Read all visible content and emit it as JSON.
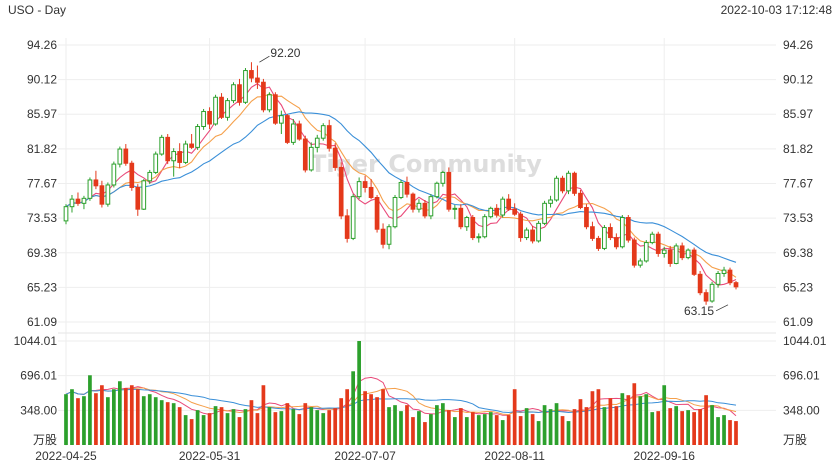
{
  "header": {
    "title": "USO - Day",
    "timestamp": "2022-10-03 17:12:48"
  },
  "watermark": "Tiger Community",
  "colors": {
    "up": "#2ca02c",
    "down": "#e4391b",
    "ma5": "#e94a7a",
    "ma10": "#f5a04b",
    "ma20": "#3a8fd8",
    "grid": "#eeeeee",
    "text": "#333333"
  },
  "chart_data": {
    "type": "candlestick",
    "price_ticks": [
      "94.26",
      "90.12",
      "85.97",
      "81.82",
      "77.67",
      "73.53",
      "69.38",
      "65.23",
      "61.09"
    ],
    "price_tick_values": [
      94.26,
      90.12,
      85.97,
      81.82,
      77.67,
      73.53,
      69.38,
      65.23,
      61.09
    ],
    "volume_ticks": [
      "1044.01",
      "696.01",
      "348.00"
    ],
    "volume_tick_values": [
      1044.01,
      696.01,
      348.0
    ],
    "volume_unit": "万股",
    "date_labels": [
      {
        "label": "2022-04-25",
        "index": 0
      },
      {
        "label": "2022-05-31",
        "index": 24
      },
      {
        "label": "2022-07-07",
        "index": 50
      },
      {
        "label": "2022-08-11",
        "index": 75
      },
      {
        "label": "2022-09-16",
        "index": 100
      }
    ],
    "annotations": [
      {
        "text": "92.20",
        "index": 32,
        "value": 92.2
      },
      {
        "text": "63.15",
        "index": 111,
        "value": 63.15
      }
    ],
    "ohlcv": [
      [
        73.2,
        75.2,
        72.8,
        74.9,
        510
      ],
      [
        74.9,
        76.3,
        74.2,
        75.8,
        560
      ],
      [
        75.8,
        76.6,
        75.0,
        75.3,
        470
      ],
      [
        75.3,
        76.2,
        74.6,
        75.9,
        490
      ],
      [
        75.9,
        78.4,
        75.6,
        78.1,
        700
      ],
      [
        78.1,
        79.2,
        77.0,
        77.4,
        520
      ],
      [
        77.4,
        78.0,
        74.8,
        75.2,
        600
      ],
      [
        75.2,
        77.8,
        74.9,
        77.5,
        480
      ],
      [
        77.5,
        80.3,
        77.2,
        80.0,
        560
      ],
      [
        80.0,
        82.1,
        79.6,
        81.8,
        640
      ],
      [
        81.8,
        82.4,
        79.8,
        80.1,
        570
      ],
      [
        80.1,
        80.4,
        76.8,
        77.2,
        600
      ],
      [
        77.2,
        77.6,
        73.8,
        74.6,
        560
      ],
      [
        74.6,
        78.2,
        74.5,
        78.0,
        490
      ],
      [
        78.0,
        79.3,
        77.6,
        79.0,
        510
      ],
      [
        79.0,
        81.5,
        78.8,
        81.2,
        480
      ],
      [
        81.2,
        83.5,
        81.0,
        83.2,
        450
      ],
      [
        83.2,
        83.6,
        80.0,
        80.4,
        430
      ],
      [
        80.4,
        81.9,
        78.5,
        81.5,
        420
      ],
      [
        81.5,
        82.5,
        79.5,
        80.2,
        380
      ],
      [
        80.2,
        82.8,
        80.0,
        82.4,
        300
      ],
      [
        82.4,
        83.6,
        81.8,
        82.0,
        260
      ],
      [
        82.0,
        84.8,
        81.7,
        84.5,
        350
      ],
      [
        84.5,
        86.6,
        84.1,
        86.3,
        300
      ],
      [
        86.3,
        86.8,
        84.2,
        84.8,
        320
      ],
      [
        84.8,
        88.3,
        84.6,
        88.0,
        390
      ],
      [
        88.0,
        88.5,
        85.4,
        85.6,
        380
      ],
      [
        85.6,
        87.9,
        85.2,
        87.6,
        320
      ],
      [
        87.6,
        89.8,
        87.3,
        89.5,
        360
      ],
      [
        89.5,
        90.2,
        87.0,
        87.4,
        280
      ],
      [
        87.4,
        91.5,
        87.2,
        91.2,
        360
      ],
      [
        91.2,
        92.2,
        89.8,
        90.3,
        450
      ],
      [
        90.3,
        91.8,
        89.0,
        89.8,
        320
      ],
      [
        89.8,
        90.2,
        86.2,
        86.5,
        600
      ],
      [
        86.5,
        88.6,
        86.2,
        88.3,
        380
      ],
      [
        88.3,
        88.6,
        84.7,
        84.9,
        330
      ],
      [
        84.9,
        86.4,
        83.6,
        85.8,
        340
      ],
      [
        85.8,
        86.0,
        82.4,
        82.6,
        420
      ],
      [
        82.6,
        85.4,
        82.3,
        84.8,
        360
      ],
      [
        84.8,
        85.2,
        82.8,
        83.0,
        310
      ],
      [
        83.0,
        83.4,
        79.0,
        79.3,
        420
      ],
      [
        79.3,
        82.6,
        79.1,
        82.0,
        380
      ],
      [
        82.0,
        83.5,
        81.4,
        83.1,
        350
      ],
      [
        83.1,
        84.9,
        82.8,
        84.6,
        320
      ],
      [
        84.6,
        85.3,
        81.5,
        81.9,
        350
      ],
      [
        81.9,
        82.5,
        79.2,
        79.6,
        370
      ],
      [
        79.6,
        80.2,
        73.4,
        73.8,
        470
      ],
      [
        73.8,
        74.6,
        70.6,
        71.1,
        560
      ],
      [
        71.1,
        76.4,
        70.9,
        76.1,
        740
      ],
      [
        76.1,
        78.4,
        75.8,
        77.9,
        1044
      ],
      [
        77.9,
        78.6,
        76.6,
        77.2,
        540
      ],
      [
        77.2,
        78.2,
        75.8,
        76.0,
        510
      ],
      [
        76.0,
        76.3,
        71.8,
        72.2,
        480
      ],
      [
        72.2,
        72.9,
        69.9,
        70.4,
        560
      ],
      [
        70.4,
        72.8,
        69.8,
        72.5,
        380
      ],
      [
        72.5,
        76.3,
        72.3,
        76.0,
        400
      ],
      [
        76.0,
        78.1,
        75.8,
        77.8,
        340
      ],
      [
        77.8,
        78.5,
        76.0,
        76.4,
        400
      ],
      [
        76.4,
        76.6,
        74.2,
        74.6,
        280
      ],
      [
        74.6,
        75.8,
        74.2,
        75.3,
        340
      ],
      [
        75.3,
        75.7,
        73.5,
        73.8,
        230
      ],
      [
        73.8,
        76.4,
        73.4,
        76.1,
        310
      ],
      [
        76.1,
        77.9,
        75.9,
        77.7,
        400
      ],
      [
        77.7,
        79.2,
        77.3,
        79.0,
        420
      ],
      [
        79.0,
        79.6,
        74.3,
        74.6,
        350
      ],
      [
        74.6,
        75.1,
        73.4,
        74.7,
        280
      ],
      [
        74.7,
        75.2,
        72.2,
        72.5,
        370
      ],
      [
        72.5,
        73.8,
        72.0,
        73.6,
        280
      ],
      [
        73.6,
        73.9,
        70.9,
        71.2,
        330
      ],
      [
        71.2,
        71.7,
        70.6,
        71.3,
        300
      ],
      [
        71.3,
        74.0,
        71.1,
        73.7,
        310
      ],
      [
        73.7,
        74.9,
        73.5,
        74.7,
        330
      ],
      [
        74.7,
        75.2,
        73.6,
        73.9,
        300
      ],
      [
        73.9,
        76.1,
        73.6,
        75.8,
        250
      ],
      [
        75.8,
        76.4,
        74.4,
        74.6,
        300
      ],
      [
        74.6,
        75.3,
        73.8,
        74.0,
        560
      ],
      [
        74.0,
        74.3,
        70.7,
        71.2,
        290
      ],
      [
        71.2,
        72.4,
        70.9,
        72.1,
        370
      ],
      [
        72.1,
        72.6,
        70.5,
        70.8,
        310
      ],
      [
        70.8,
        73.2,
        70.6,
        72.9,
        240
      ],
      [
        72.9,
        75.6,
        72.7,
        75.3,
        400
      ],
      [
        75.3,
        76.2,
        74.8,
        75.7,
        360
      ],
      [
        75.7,
        78.6,
        75.5,
        78.3,
        420
      ],
      [
        78.3,
        78.6,
        76.5,
        76.8,
        290
      ],
      [
        76.8,
        79.2,
        76.4,
        78.9,
        240
      ],
      [
        78.9,
        79.1,
        76.2,
        76.5,
        360
      ],
      [
        76.5,
        76.9,
        74.6,
        74.8,
        460
      ],
      [
        74.8,
        75.2,
        72.2,
        72.5,
        380
      ],
      [
        72.5,
        73.1,
        70.8,
        71.1,
        540
      ],
      [
        71.1,
        71.4,
        69.6,
        69.9,
        560
      ],
      [
        69.9,
        72.7,
        69.7,
        72.4,
        380
      ],
      [
        72.4,
        72.9,
        70.9,
        71.2,
        470
      ],
      [
        71.2,
        71.7,
        69.8,
        70.1,
        390
      ],
      [
        70.1,
        73.9,
        69.9,
        73.6,
        520
      ],
      [
        73.6,
        73.9,
        70.6,
        70.9,
        500
      ],
      [
        70.9,
        71.2,
        67.6,
        67.9,
        620
      ],
      [
        67.9,
        68.7,
        67.6,
        68.4,
        490
      ],
      [
        68.4,
        70.9,
        68.2,
        70.6,
        510
      ],
      [
        70.6,
        71.9,
        70.4,
        71.6,
        330
      ],
      [
        71.6,
        71.9,
        68.9,
        69.3,
        340
      ],
      [
        69.3,
        70.1,
        68.8,
        69.7,
        600
      ],
      [
        69.7,
        70.2,
        67.7,
        68.1,
        370
      ],
      [
        68.1,
        70.5,
        68.0,
        70.2,
        390
      ],
      [
        70.2,
        70.6,
        68.5,
        68.8,
        340
      ],
      [
        68.8,
        69.9,
        68.6,
        69.7,
        350
      ],
      [
        69.7,
        70.0,
        66.6,
        66.8,
        330
      ],
      [
        66.8,
        67.2,
        64.3,
        64.6,
        360
      ],
      [
        64.6,
        65.0,
        63.15,
        63.6,
        500
      ],
      [
        63.6,
        65.9,
        63.4,
        65.6,
        400
      ],
      [
        65.6,
        67.2,
        65.2,
        66.9,
        280
      ],
      [
        66.9,
        67.7,
        66.5,
        67.3,
        300
      ],
      [
        67.3,
        67.6,
        65.5,
        65.8,
        250
      ],
      [
        65.8,
        66.0,
        65.0,
        65.3,
        240
      ]
    ]
  }
}
